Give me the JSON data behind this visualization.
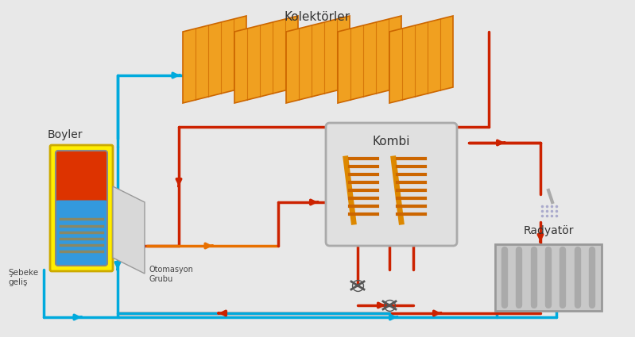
{
  "bg_color": "#e8e8e8",
  "title_kolektorler": "Kolektörler",
  "title_boyler": "Boyler",
  "title_kombi": "Kombi",
  "title_radyator": "Radyatör",
  "title_otomasyon": "Otomasyon\nGrubu",
  "title_sebeke": "Şebeke\ngeliş",
  "red_color": "#cc2200",
  "blue_color": "#00aadd",
  "orange_color": "#e87000",
  "yellow_color": "#ffee00",
  "panel_orange1": "#f0a020",
  "panel_orange2": "#e08010",
  "panel_dark": "#cc6600",
  "gray_light": "#d8d8d8",
  "gray_mid": "#b0b0b0",
  "kombi_bg": "#e0e0e0",
  "radyator_bg": "#c8c8c8",
  "line_width": 2.5,
  "arrow_size": 8
}
